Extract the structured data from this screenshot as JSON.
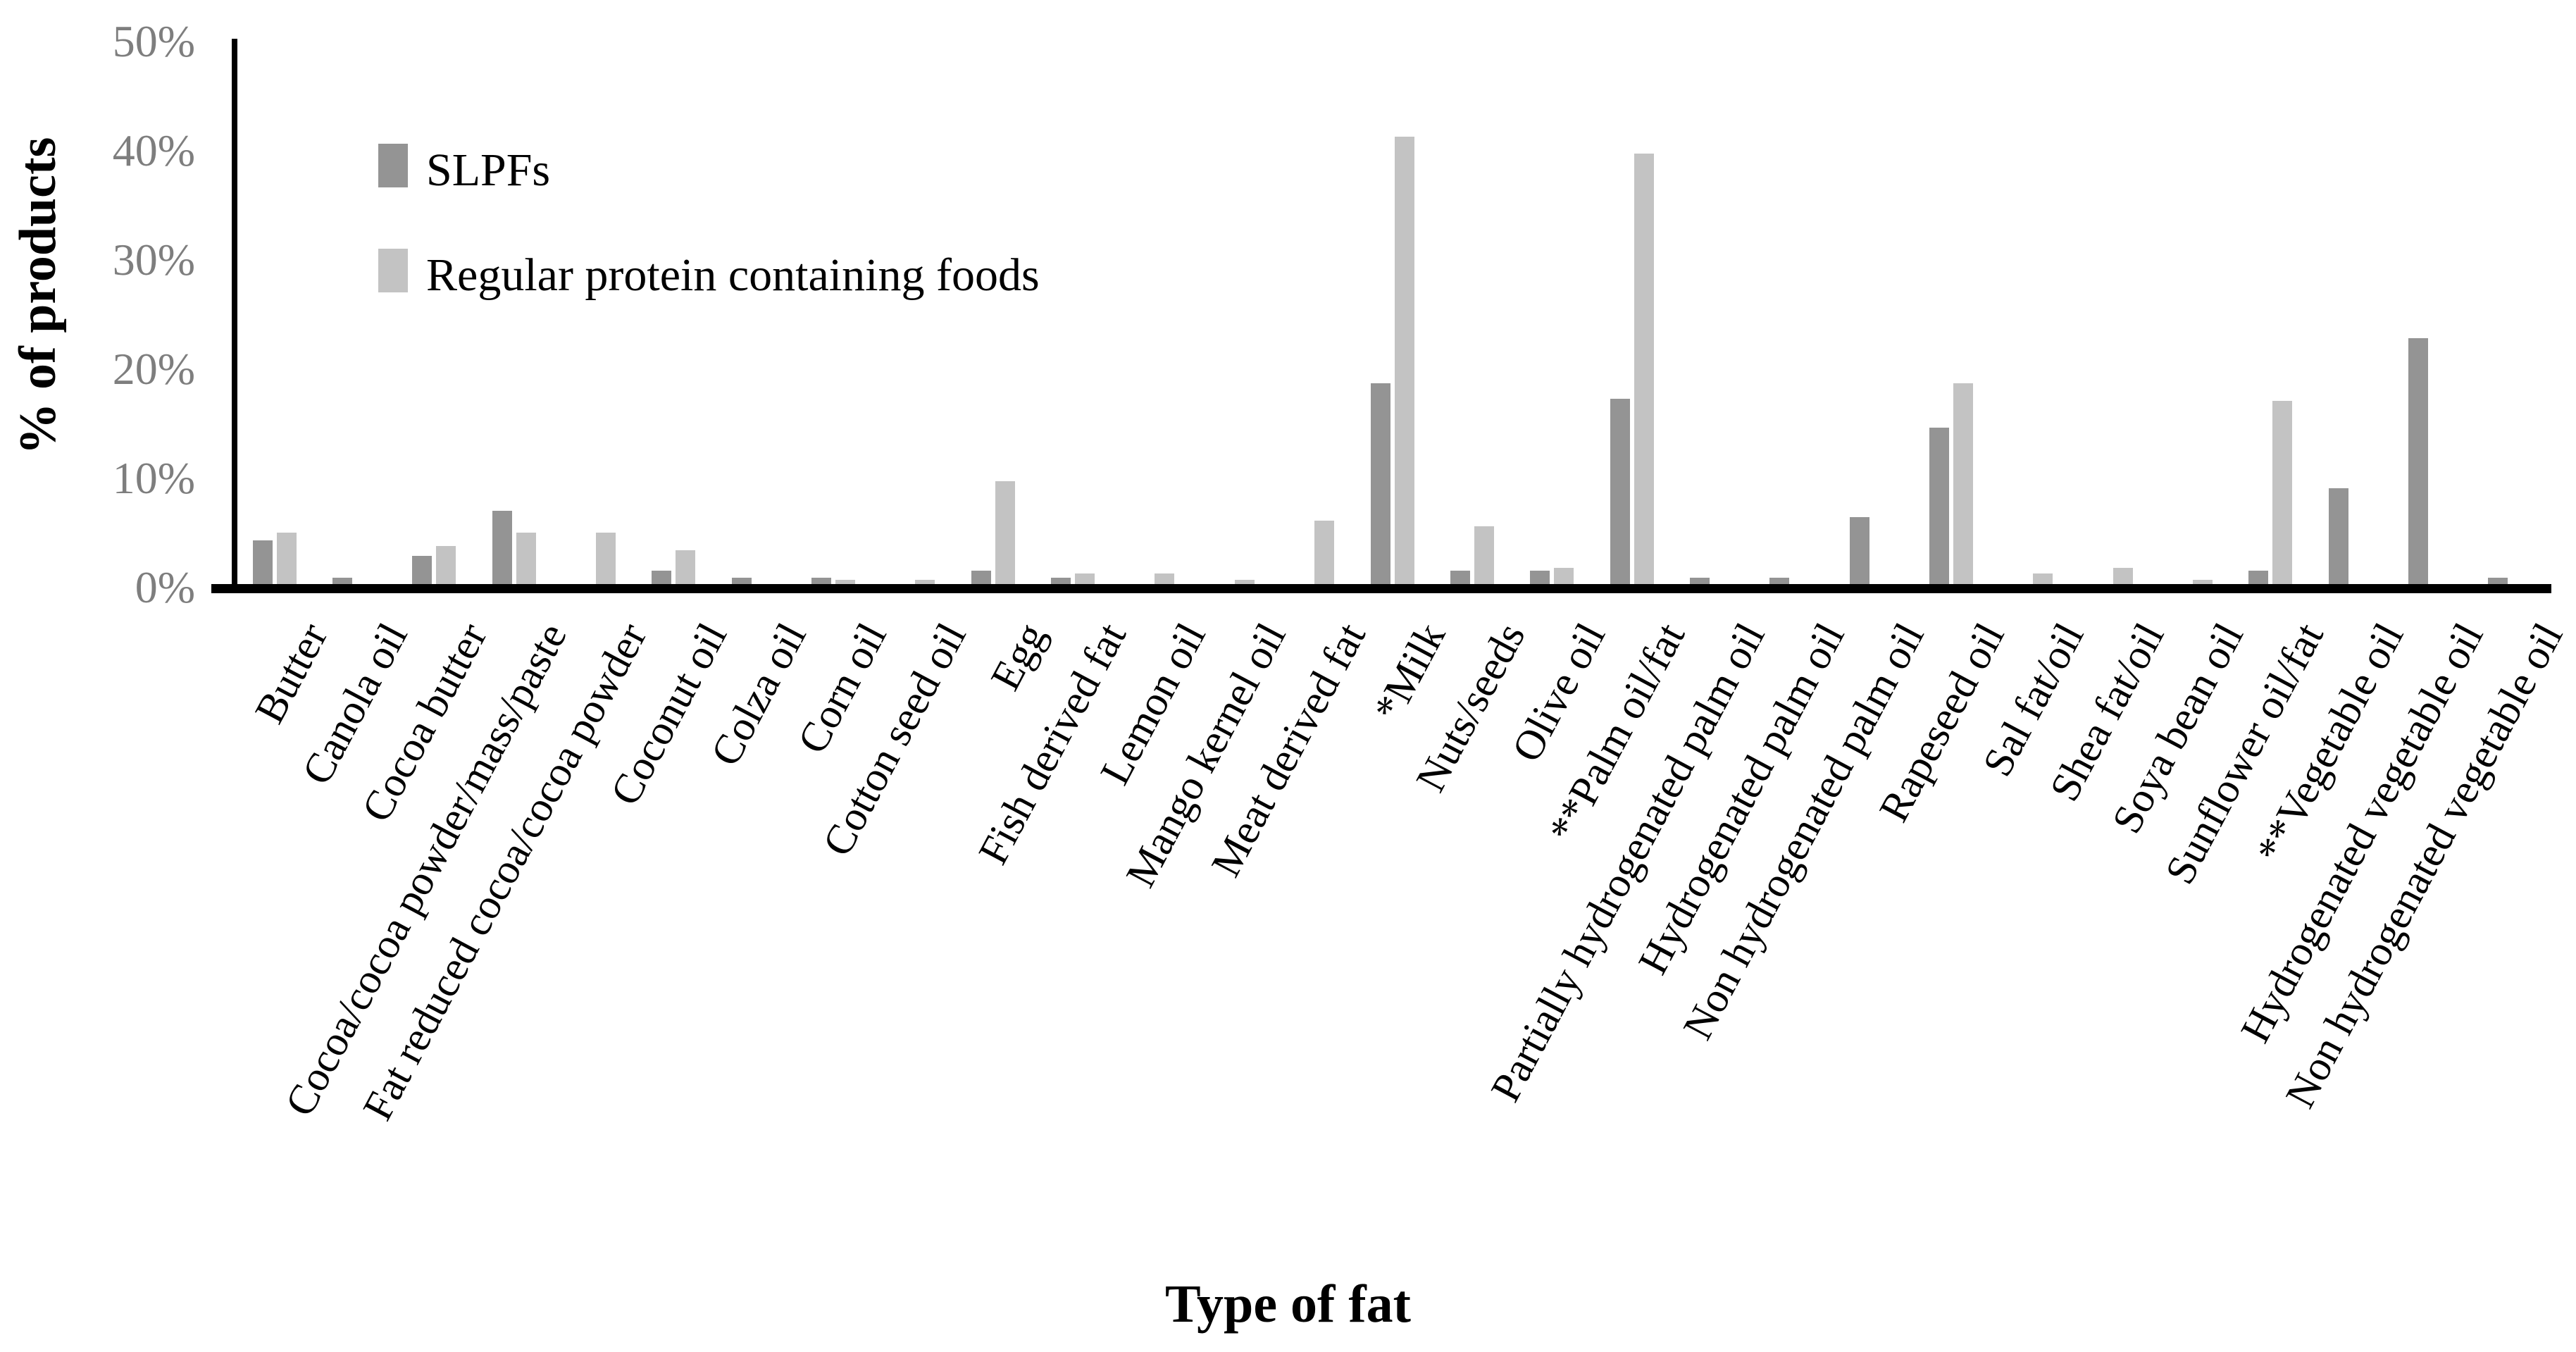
{
  "figure": {
    "y_axis_title": "% of products",
    "x_axis_title": "Type of fat"
  },
  "legend": {
    "items": [
      {
        "label": "SLPFs",
        "icon": "dark-gray-square-swatch",
        "color": "#949494"
      },
      {
        "label": "Regular protein containing foods",
        "icon": "light-gray-square-swatch",
        "color": "#c3c3c3"
      }
    ]
  },
  "chart_data": {
    "type": "bar",
    "title": "",
    "xlabel": "Type of fat",
    "ylabel": "% of products",
    "ylim": [
      0,
      50
    ],
    "y_ticks": [
      0,
      10,
      20,
      30,
      40,
      50
    ],
    "y_tick_labels": [
      "0%",
      "10%",
      "20%",
      "30%",
      "40%",
      "50%"
    ],
    "grid": false,
    "legend_position": "top-left-inside",
    "bar_unit": "percent of products",
    "categories": [
      "Butter",
      "Canola oil",
      "Cocoa butter",
      "Cocoa/cocoa powder/mass/paste",
      "Fat reduced cocoa/cocoa powder",
      "Coconut oil",
      "Colza oil",
      "Corn oil",
      "Cotton seed oil",
      "Egg",
      "Fish derived fat",
      "Lemon oil",
      "Mango kernel oil",
      "Meat derived fat",
      "*Milk",
      "Nuts/seeds",
      "Olive oil",
      "**Palm oil/fat",
      "Partially hydrogenated palm oil",
      "Hydrogenated palm oil",
      "Non hydrogenated palm oil",
      "Rapeseed oil",
      "Sal fat/oil",
      "Shea fat/oil",
      "Soya bean oil",
      "Sunflower oil/fat",
      "**Vegetable oil",
      "Hydrogenated vegetable oil",
      "Non hydrogenated vegetable oil"
    ],
    "series": [
      {
        "name": "SLPFs",
        "color": "#949494",
        "values": [
          4.0,
          0.6,
          2.6,
          6.7,
          0,
          1.2,
          0.6,
          0.6,
          0,
          1.2,
          0.6,
          0,
          0,
          0,
          18.4,
          1.2,
          1.2,
          17.0,
          0.6,
          0.6,
          6.1,
          14.3,
          0,
          0,
          0,
          1.2,
          8.8,
          22.5,
          0.6
        ]
      },
      {
        "name": "Regular protein containing foods",
        "color": "#c3c3c3",
        "values": [
          4.7,
          0,
          3.5,
          4.7,
          4.7,
          3.1,
          0,
          0.4,
          0.4,
          9.4,
          1.0,
          1.0,
          0.4,
          5.8,
          41.0,
          5.3,
          1.5,
          39.4,
          0,
          0,
          0,
          18.4,
          1.0,
          1.5,
          0.4,
          16.8,
          0,
          0,
          0
        ]
      }
    ]
  }
}
